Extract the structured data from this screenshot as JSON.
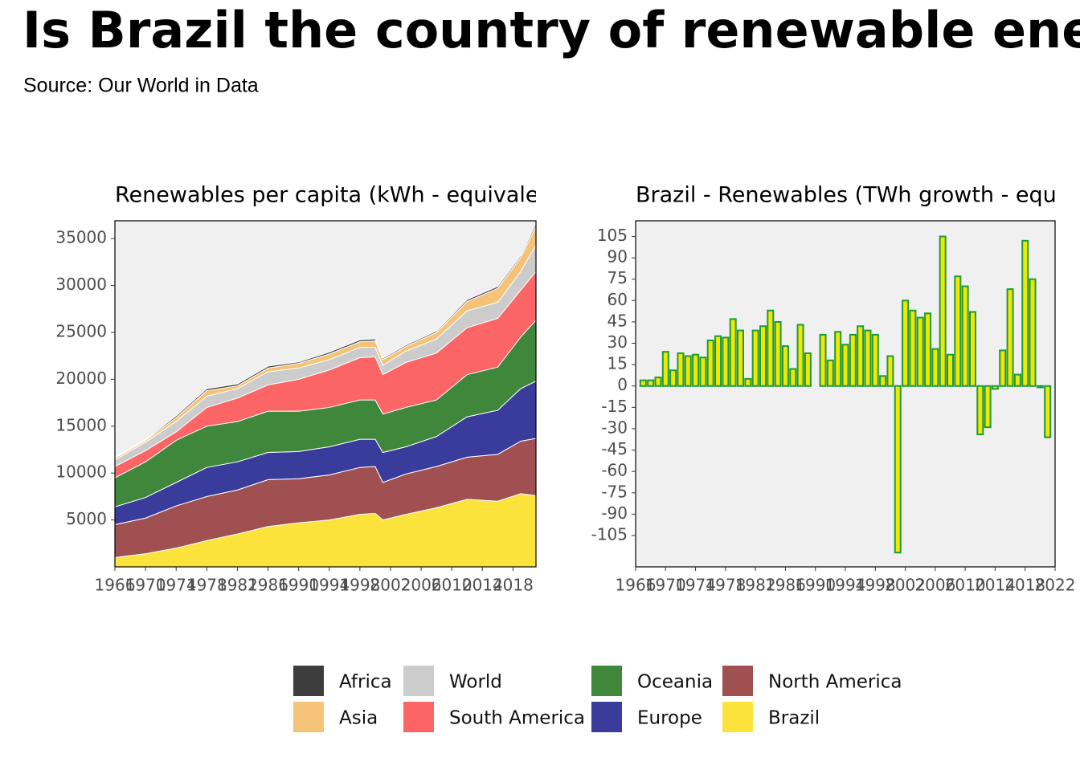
{
  "title": "Is Brazil the country of renewable energ",
  "subtitle": "Source: Our World in Data",
  "chart_data": [
    {
      "type": "area",
      "title": "Renewables per capita (kWh - equivalen",
      "stacked": true,
      "x": [
        1966,
        1970,
        1974,
        1978,
        1982,
        1986,
        1990,
        1994,
        1998,
        2000,
        2001,
        2004,
        2008,
        2012,
        2016,
        2019,
        2021
      ],
      "xlim": [
        1966,
        2021
      ],
      "xticks": [
        1966,
        1970,
        1974,
        1978,
        1982,
        1986,
        1990,
        1994,
        1998,
        2002,
        2006,
        2010,
        2014,
        2018
      ],
      "ylim": [
        0,
        36900
      ],
      "yticks": [
        5000,
        10000,
        15000,
        20000,
        25000,
        30000,
        35000
      ],
      "series": [
        {
          "name": "Brazil",
          "color": "#fbe33b",
          "values": [
            1000,
            1400,
            2000,
            2800,
            3500,
            4300,
            4700,
            5000,
            5600,
            5700,
            5000,
            5600,
            6300,
            7200,
            7000,
            7800,
            7600
          ]
        },
        {
          "name": "North America",
          "color": "#a05050",
          "values": [
            3500,
            3800,
            4500,
            4700,
            4700,
            5000,
            4700,
            4800,
            5000,
            5000,
            4000,
            4300,
            4400,
            4500,
            5000,
            5600,
            6100
          ]
        },
        {
          "name": "Europe",
          "color": "#3a3c9c",
          "values": [
            1900,
            2200,
            2500,
            3100,
            3000,
            2900,
            2900,
            3000,
            3000,
            2900,
            3200,
            2900,
            3200,
            4300,
            4700,
            5600,
            6100
          ]
        },
        {
          "name": "Oceania",
          "color": "#3e873b",
          "values": [
            3100,
            3800,
            4500,
            4400,
            4300,
            4400,
            4300,
            4200,
            4200,
            4200,
            4100,
            4200,
            3900,
            4500,
            4600,
            5500,
            6500
          ]
        },
        {
          "name": "South America",
          "color": "#fb6565",
          "values": [
            1200,
            1200,
            900,
            2000,
            2500,
            2800,
            3400,
            4000,
            4500,
            4600,
            4200,
            4800,
            5000,
            5000,
            5200,
            5000,
            5200
          ]
        },
        {
          "name": "World",
          "color": "#cccccc",
          "values": [
            700,
            900,
            1100,
            1200,
            1000,
            1400,
            1200,
            1100,
            1100,
            1000,
            1000,
            1200,
            1500,
            1800,
            1700,
            2000,
            2800
          ]
        },
        {
          "name": "Asia",
          "color": "#f5c377",
          "values": [
            200,
            200,
            400,
            600,
            300,
            400,
            500,
            600,
            600,
            700,
            600,
            500,
            700,
            1000,
            1500,
            1500,
            2000
          ]
        },
        {
          "name": "Africa",
          "color": "#3d3d3d",
          "values": [
            100,
            100,
            200,
            200,
            200,
            200,
            150,
            200,
            200,
            200,
            150,
            150,
            150,
            200,
            200,
            200,
            300
          ]
        }
      ]
    },
    {
      "type": "bar",
      "title": "Brazil - Renewables (TWh growth - equiva",
      "color": "#f5e600",
      "edgecolor": "#1a9c3a",
      "x": [
        1967,
        1968,
        1969,
        1970,
        1971,
        1972,
        1973,
        1974,
        1975,
        1976,
        1977,
        1978,
        1979,
        1980,
        1981,
        1982,
        1983,
        1984,
        1985,
        1986,
        1987,
        1988,
        1989,
        1990,
        1991,
        1992,
        1993,
        1994,
        1995,
        1996,
        1997,
        1998,
        1999,
        2000,
        2001,
        2002,
        2003,
        2004,
        2005,
        2006,
        2007,
        2008,
        2009,
        2010,
        2011,
        2012,
        2013,
        2014,
        2015,
        2016,
        2017,
        2018,
        2019,
        2020,
        2021
      ],
      "values": [
        4,
        4,
        6,
        24,
        11,
        23,
        21,
        22,
        20,
        32,
        35,
        34,
        47,
        39,
        5,
        39,
        42,
        53,
        45,
        28,
        12,
        43,
        23,
        0,
        36,
        18,
        38,
        29,
        36,
        42,
        39,
        36,
        7,
        21,
        -117,
        60,
        53,
        48,
        51,
        26,
        105,
        22,
        77,
        70,
        52,
        -34,
        -29,
        -2,
        25,
        68,
        8,
        102,
        75,
        -1,
        -36
      ],
      "xlim": [
        1966,
        2022
      ],
      "xticks": [
        1966,
        1970,
        1974,
        1978,
        1982,
        1986,
        1990,
        1994,
        1998,
        2002,
        2006,
        2010,
        2014,
        2018,
        2022
      ],
      "ylim": [
        -127,
        116
      ],
      "yticks": [
        -105,
        -90,
        -75,
        -60,
        -45,
        -30,
        -15,
        0,
        15,
        30,
        45,
        60,
        75,
        90,
        105
      ]
    }
  ]
}
